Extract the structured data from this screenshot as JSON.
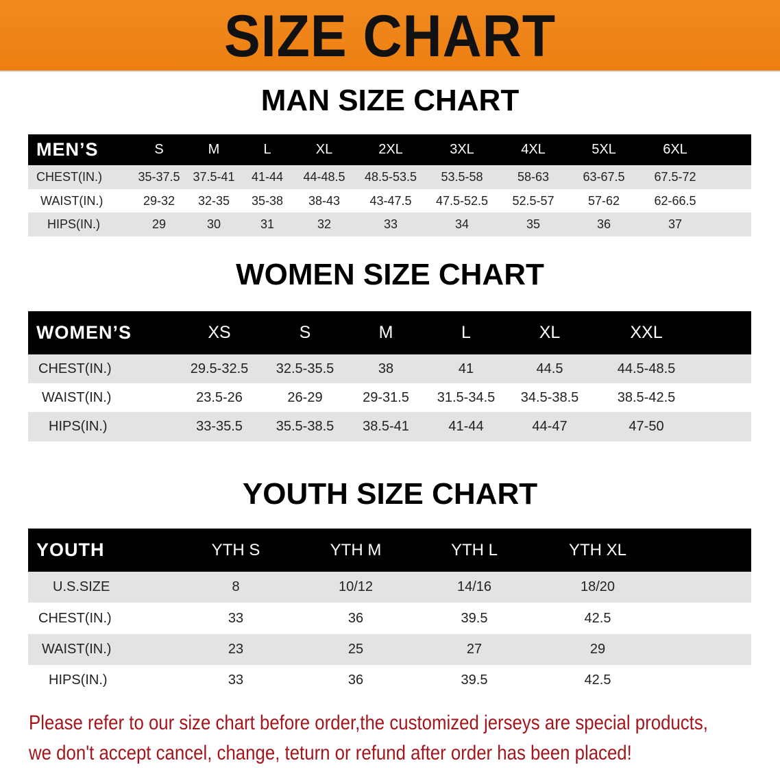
{
  "banner": {
    "title": "SIZE CHART",
    "color": "#ef8418"
  },
  "men": {
    "title": "MAN SIZE CHART",
    "header": [
      "MEN’S",
      "S",
      "M",
      "L",
      "XL",
      "2XL",
      "3XL",
      "4XL",
      "5XL",
      "6XL"
    ],
    "rows": [
      [
        "CHEST(IN.)",
        "35-37.5",
        "37.5-41",
        "41-44",
        "44-48.5",
        "48.5-53.5",
        "53.5-58",
        "58-63",
        "63-67.5",
        "67.5-72"
      ],
      [
        "WAIST(IN.)",
        "29-32",
        "32-35",
        "35-38",
        "38-43",
        "43-47.5",
        "47.5-52.5",
        "52.5-57",
        "57-62",
        "62-66.5"
      ],
      [
        "HIPS(IN.)",
        "29",
        "30",
        "31",
        "32",
        "33",
        "34",
        "35",
        "36",
        "37"
      ]
    ]
  },
  "women": {
    "title": "WOMEN SIZE CHART",
    "header": [
      "WOMEN’S",
      "XS",
      "S",
      "M",
      "L",
      "XL",
      "XXL"
    ],
    "rows": [
      [
        "CHEST(IN.)",
        "29.5-32.5",
        "32.5-35.5",
        "38",
        "41",
        "44.5",
        "44.5-48.5"
      ],
      [
        "WAIST(IN.)",
        "23.5-26",
        "26-29",
        "29-31.5",
        "31.5-34.5",
        "34.5-38.5",
        "38.5-42.5"
      ],
      [
        "HIPS(IN.)",
        "33-35.5",
        "35.5-38.5",
        "38.5-41",
        "41-44",
        "44-47",
        "47-50"
      ]
    ]
  },
  "youth": {
    "title": "YOUTH SIZE CHART",
    "header": [
      "YOUTH",
      "YTH S",
      "YTH M",
      "YTH L",
      "YTH XL"
    ],
    "rows": [
      [
        "U.S.SIZE",
        "8",
        "10/12",
        "14/16",
        "18/20"
      ],
      [
        "CHEST(IN.)",
        "33",
        "36",
        "39.5",
        "42.5"
      ],
      [
        "WAIST(IN.)",
        "23",
        "25",
        "27",
        "29"
      ],
      [
        "HIPS(IN.)",
        "33",
        "36",
        "39.5",
        "42.5"
      ]
    ]
  },
  "notice": {
    "line1": "Please refer to our size chart before order,the customized jerseys are special products,",
    "line2": "we don't accept cancel, change, teturn or refund after order has been placed!",
    "color": "#a3161b"
  }
}
